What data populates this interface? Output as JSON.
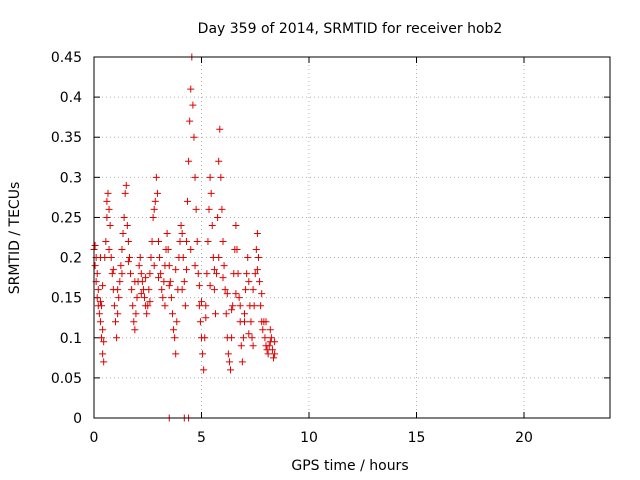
{
  "chart_data": {
    "type": "scatter",
    "title": "Day 359 of 2014, SRMTID for receiver hob2",
    "xlabel": "GPS time / hours",
    "ylabel": "SRMTID / TECUs",
    "xlim": [
      0,
      24
    ],
    "ylim": [
      0,
      0.45
    ],
    "xticks": [
      0,
      5,
      10,
      15,
      20
    ],
    "xtick_labels": [
      "0",
      "5",
      "10",
      "15",
      "20"
    ],
    "yticks": [
      0,
      0.05,
      0.1,
      0.15,
      0.2,
      0.25,
      0.3,
      0.35,
      0.4,
      0.45
    ],
    "ytick_labels": [
      "0",
      "0.05",
      "0.1",
      "0.15",
      "0.2",
      "0.25",
      "0.3",
      "0.35",
      "0.4",
      "0.45"
    ],
    "grid": true,
    "marker": "+",
    "color": "#e00000",
    "series": [
      {
        "name": "SRMTID",
        "points": [
          [
            0.0,
            0.21
          ],
          [
            0.05,
            0.19
          ],
          [
            0.1,
            0.17
          ],
          [
            0.15,
            0.15
          ],
          [
            0.2,
            0.14
          ],
          [
            0.25,
            0.13
          ],
          [
            0.3,
            0.12
          ],
          [
            0.35,
            0.1
          ],
          [
            0.4,
            0.08
          ],
          [
            0.45,
            0.07
          ],
          [
            0.05,
            0.215
          ],
          [
            0.1,
            0.2
          ],
          [
            0.2,
            0.16
          ],
          [
            0.3,
            0.145
          ],
          [
            0.35,
            0.14
          ],
          [
            0.4,
            0.11
          ],
          [
            0.45,
            0.095
          ],
          [
            0.5,
            0.2
          ],
          [
            0.55,
            0.22
          ],
          [
            0.6,
            0.25
          ],
          [
            0.6,
            0.27
          ],
          [
            0.65,
            0.28
          ],
          [
            0.7,
            0.26
          ],
          [
            0.75,
            0.24
          ],
          [
            0.8,
            0.2
          ],
          [
            0.85,
            0.18
          ],
          [
            0.9,
            0.16
          ],
          [
            0.95,
            0.14
          ],
          [
            1.0,
            0.12
          ],
          [
            1.05,
            0.1
          ],
          [
            1.1,
            0.13
          ],
          [
            1.15,
            0.15
          ],
          [
            1.2,
            0.17
          ],
          [
            1.25,
            0.19
          ],
          [
            1.3,
            0.21
          ],
          [
            1.35,
            0.23
          ],
          [
            1.4,
            0.25
          ],
          [
            1.45,
            0.28
          ],
          [
            1.5,
            0.29
          ],
          [
            1.55,
            0.24
          ],
          [
            1.6,
            0.22
          ],
          [
            1.65,
            0.2
          ],
          [
            1.7,
            0.18
          ],
          [
            1.75,
            0.16
          ],
          [
            1.8,
            0.14
          ],
          [
            1.85,
            0.12
          ],
          [
            1.9,
            0.11
          ],
          [
            1.95,
            0.13
          ],
          [
            2.0,
            0.15
          ],
          [
            2.05,
            0.17
          ],
          [
            2.1,
            0.19
          ],
          [
            2.15,
            0.2
          ],
          [
            2.2,
            0.18
          ],
          [
            2.25,
            0.17
          ],
          [
            2.3,
            0.16
          ],
          [
            2.35,
            0.15
          ],
          [
            2.4,
            0.14
          ],
          [
            2.45,
            0.13
          ],
          [
            2.5,
            0.14
          ],
          [
            2.55,
            0.16
          ],
          [
            2.6,
            0.18
          ],
          [
            2.65,
            0.2
          ],
          [
            2.7,
            0.22
          ],
          [
            2.75,
            0.25
          ],
          [
            2.8,
            0.26
          ],
          [
            2.85,
            0.27
          ],
          [
            2.9,
            0.3
          ],
          [
            2.95,
            0.28
          ],
          [
            3.0,
            0.22
          ],
          [
            3.05,
            0.2
          ],
          [
            3.1,
            0.18
          ],
          [
            3.15,
            0.16
          ],
          [
            3.2,
            0.15
          ],
          [
            3.25,
            0.17
          ],
          [
            3.3,
            0.19
          ],
          [
            3.35,
            0.21
          ],
          [
            3.4,
            0.23
          ],
          [
            3.45,
            0.21
          ],
          [
            3.5,
            0.19
          ],
          [
            3.55,
            0.17
          ],
          [
            3.6,
            0.15
          ],
          [
            3.65,
            0.13
          ],
          [
            3.7,
            0.11
          ],
          [
            3.75,
            0.1
          ],
          [
            3.8,
            0.08
          ],
          [
            3.85,
            0.12
          ],
          [
            3.9,
            0.16
          ],
          [
            3.95,
            0.2
          ],
          [
            4.0,
            0.22
          ],
          [
            4.05,
            0.24
          ],
          [
            4.1,
            0.23
          ],
          [
            4.15,
            0.2
          ],
          [
            4.2,
            0.17
          ],
          [
            4.25,
            0.14
          ],
          [
            4.3,
            0.22
          ],
          [
            4.35,
            0.27
          ],
          [
            4.4,
            0.32
          ],
          [
            4.45,
            0.37
          ],
          [
            4.5,
            0.41
          ],
          [
            4.55,
            0.45
          ],
          [
            4.6,
            0.39
          ],
          [
            4.65,
            0.35
          ],
          [
            4.7,
            0.3
          ],
          [
            4.75,
            0.26
          ],
          [
            4.8,
            0.22
          ],
          [
            4.85,
            0.18
          ],
          [
            4.9,
            0.14
          ],
          [
            4.95,
            0.12
          ],
          [
            5.0,
            0.1
          ],
          [
            5.05,
            0.08
          ],
          [
            5.1,
            0.06
          ],
          [
            5.15,
            0.1
          ],
          [
            5.2,
            0.14
          ],
          [
            5.25,
            0.18
          ],
          [
            5.3,
            0.22
          ],
          [
            5.35,
            0.26
          ],
          [
            5.4,
            0.3
          ],
          [
            5.45,
            0.28
          ],
          [
            5.5,
            0.24
          ],
          [
            5.55,
            0.2
          ],
          [
            5.6,
            0.16
          ],
          [
            5.65,
            0.13
          ],
          [
            5.7,
            0.18
          ],
          [
            5.75,
            0.25
          ],
          [
            5.8,
            0.32
          ],
          [
            5.85,
            0.36
          ],
          [
            5.9,
            0.3
          ],
          [
            5.95,
            0.26
          ],
          [
            6.0,
            0.22
          ],
          [
            6.05,
            0.19
          ],
          [
            6.1,
            0.16
          ],
          [
            6.15,
            0.13
          ],
          [
            6.2,
            0.1
          ],
          [
            6.25,
            0.08
          ],
          [
            6.3,
            0.07
          ],
          [
            6.35,
            0.06
          ],
          [
            6.4,
            0.1
          ],
          [
            6.45,
            0.14
          ],
          [
            6.5,
            0.18
          ],
          [
            6.55,
            0.21
          ],
          [
            6.6,
            0.24
          ],
          [
            6.65,
            0.21
          ],
          [
            6.7,
            0.18
          ],
          [
            6.75,
            0.15
          ],
          [
            6.8,
            0.12
          ],
          [
            6.85,
            0.09
          ],
          [
            6.9,
            0.07
          ],
          [
            6.95,
            0.1
          ],
          [
            7.0,
            0.13
          ],
          [
            7.05,
            0.16
          ],
          [
            7.1,
            0.18
          ],
          [
            7.15,
            0.2
          ],
          [
            7.2,
            0.17
          ],
          [
            7.25,
            0.14
          ],
          [
            7.3,
            0.12
          ],
          [
            7.35,
            0.1
          ],
          [
            7.4,
            0.09
          ],
          [
            7.45,
            0.14
          ],
          [
            7.5,
            0.18
          ],
          [
            7.55,
            0.21
          ],
          [
            7.6,
            0.23
          ],
          [
            7.65,
            0.2
          ],
          [
            7.7,
            0.17
          ],
          [
            7.75,
            0.14
          ],
          [
            7.8,
            0.12
          ],
          [
            7.85,
            0.11
          ],
          [
            7.9,
            0.12
          ],
          [
            7.95,
            0.1
          ],
          [
            8.0,
            0.09
          ],
          [
            8.05,
            0.085
          ],
          [
            8.1,
            0.08
          ],
          [
            8.15,
            0.09
          ],
          [
            8.2,
            0.095
          ],
          [
            8.25,
            0.1
          ],
          [
            8.3,
            0.085
          ],
          [
            8.35,
            0.075
          ],
          [
            8.4,
            0.08
          ],
          [
            0.15,
            0.18
          ],
          [
            0.4,
            0.165
          ],
          [
            0.7,
            0.21
          ],
          [
            0.9,
            0.185
          ],
          [
            1.1,
            0.16
          ],
          [
            1.3,
            0.18
          ],
          [
            1.6,
            0.195
          ],
          [
            1.9,
            0.17
          ],
          [
            2.2,
            0.155
          ],
          [
            2.4,
            0.175
          ],
          [
            2.6,
            0.145
          ],
          [
            2.8,
            0.19
          ],
          [
            3.0,
            0.175
          ],
          [
            3.3,
            0.14
          ],
          [
            3.5,
            0.165
          ],
          [
            3.8,
            0.185
          ],
          [
            4.1,
            0.16
          ],
          [
            4.3,
            0.185
          ],
          [
            4.5,
            0.21
          ],
          [
            4.7,
            0.19
          ],
          [
            4.9,
            0.165
          ],
          [
            5.0,
            0.145
          ],
          [
            5.2,
            0.125
          ],
          [
            5.4,
            0.165
          ],
          [
            5.6,
            0.185
          ],
          [
            5.8,
            0.2
          ],
          [
            6.0,
            0.175
          ],
          [
            6.2,
            0.155
          ],
          [
            6.4,
            0.135
          ],
          [
            6.6,
            0.155
          ],
          [
            6.8,
            0.14
          ],
          [
            7.0,
            0.12
          ],
          [
            7.2,
            0.105
          ],
          [
            7.4,
            0.16
          ],
          [
            7.6,
            0.185
          ],
          [
            7.8,
            0.155
          ],
          [
            8.0,
            0.12
          ],
          [
            8.2,
            0.11
          ],
          [
            8.4,
            0.095
          ],
          [
            0.3,
            0.2
          ],
          [
            3.5,
            0.0
          ],
          [
            4.2,
            0.0
          ],
          [
            4.4,
            0.0
          ]
        ]
      }
    ]
  }
}
